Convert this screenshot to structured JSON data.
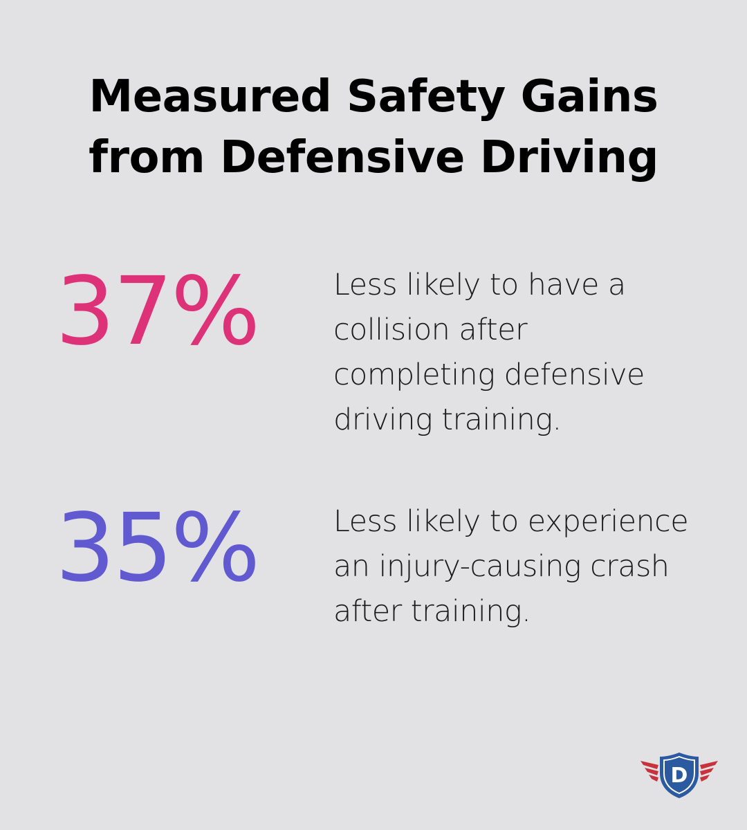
{
  "title": {
    "line1": "Measured Safety Gains",
    "line2": "from Defensive Driving"
  },
  "stats": [
    {
      "value": "37%",
      "color": "#dd3178",
      "description": "Less likely to have a collision after completing defensive driving training."
    },
    {
      "value": "35%",
      "color": "#6159d0",
      "description": "Less likely to experience an injury-causing crash after training."
    }
  ],
  "logo": {
    "icon": "winged-shield-logo",
    "letter": "D",
    "wing_color": "#c8323c",
    "shield_color": "#2c5aa0"
  }
}
